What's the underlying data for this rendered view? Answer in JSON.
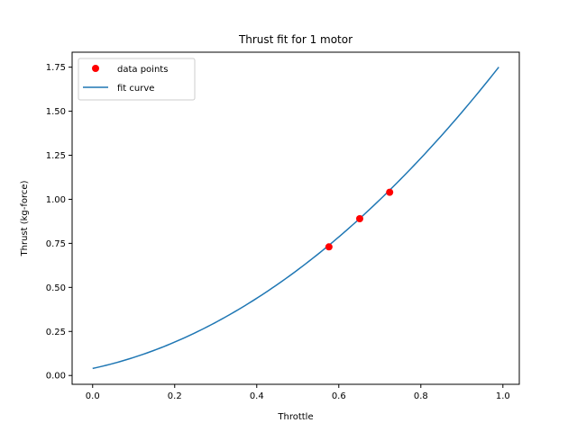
{
  "chart_data": {
    "type": "scatter",
    "title": "Thrust fit for 1 motor",
    "xlabel": "Throttle",
    "ylabel": "Thrust (kg-force)",
    "xlim": [
      -0.05,
      1.04
    ],
    "ylim": [
      -0.05,
      1.835
    ],
    "xticks": [
      0.0,
      0.2,
      0.4,
      0.6,
      0.8,
      1.0
    ],
    "xtick_labels": [
      "0.0",
      "0.2",
      "0.4",
      "0.6",
      "0.8",
      "1.0"
    ],
    "yticks": [
      0.0,
      0.25,
      0.5,
      0.75,
      1.0,
      1.25,
      1.5,
      1.75
    ],
    "ytick_labels": [
      "0.00",
      "0.25",
      "0.50",
      "0.75",
      "1.00",
      "1.25",
      "1.50",
      "1.75"
    ],
    "grid": false,
    "legend": {
      "placement": "upper-left",
      "entries": [
        "data points",
        "fit curve"
      ]
    },
    "series": [
      {
        "name": "data points",
        "kind": "scatter",
        "color": "#ff0000",
        "points": [
          {
            "x": 0.576,
            "y": 0.73
          },
          {
            "x": 0.651,
            "y": 0.89
          },
          {
            "x": 0.724,
            "y": 1.04
          }
        ]
      },
      {
        "name": "fit curve",
        "kind": "line",
        "color": "#1f77b4",
        "x_range": [
          0.0,
          0.99
        ],
        "coefficients": [
          0.04,
          0.5,
          1.24
        ]
      }
    ]
  }
}
